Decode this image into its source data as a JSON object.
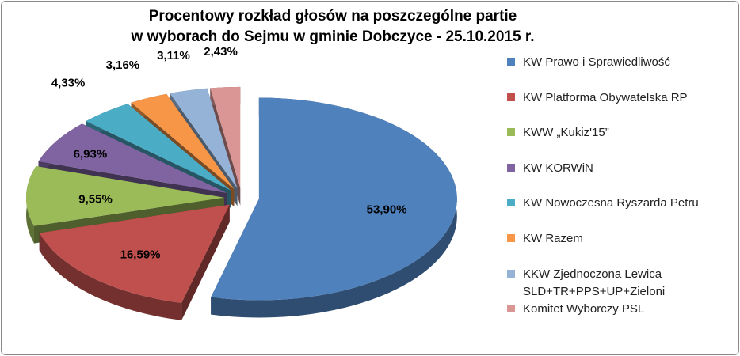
{
  "chart_data": {
    "type": "pie",
    "title": "Procentowy rozkład głosów na poszczególne partie\nw wyborach do Sejmu w gminie Dobczyce - 25.10.2015  r.",
    "categories": [
      "KW Prawo i Sprawiedliwość",
      "KW Platforma Obywatelska RP",
      "KWW „Kukiz'15”",
      "KW KORWiN",
      "KW Nowoczesna Ryszarda Petru",
      "KW Razem",
      "KKW Zjednoczona Lewica\nSLD+TR+PPS+UP+Zieloni",
      "Komitet Wyborczy PSL"
    ],
    "values": [
      53.9,
      16.59,
      9.55,
      6.93,
      4.33,
      3.16,
      3.11,
      2.43
    ],
    "value_labels": [
      "53,90%",
      "16,59%",
      "9,55%",
      "6,93%",
      "4,33%",
      "3,16%",
      "3,11%",
      "2,43%"
    ],
    "colors": [
      "#4F81BD",
      "#C0504D",
      "#9BBB59",
      "#8064A2",
      "#4BACC6",
      "#F79646",
      "#95B3D7",
      "#D99694"
    ],
    "legend": "right"
  }
}
